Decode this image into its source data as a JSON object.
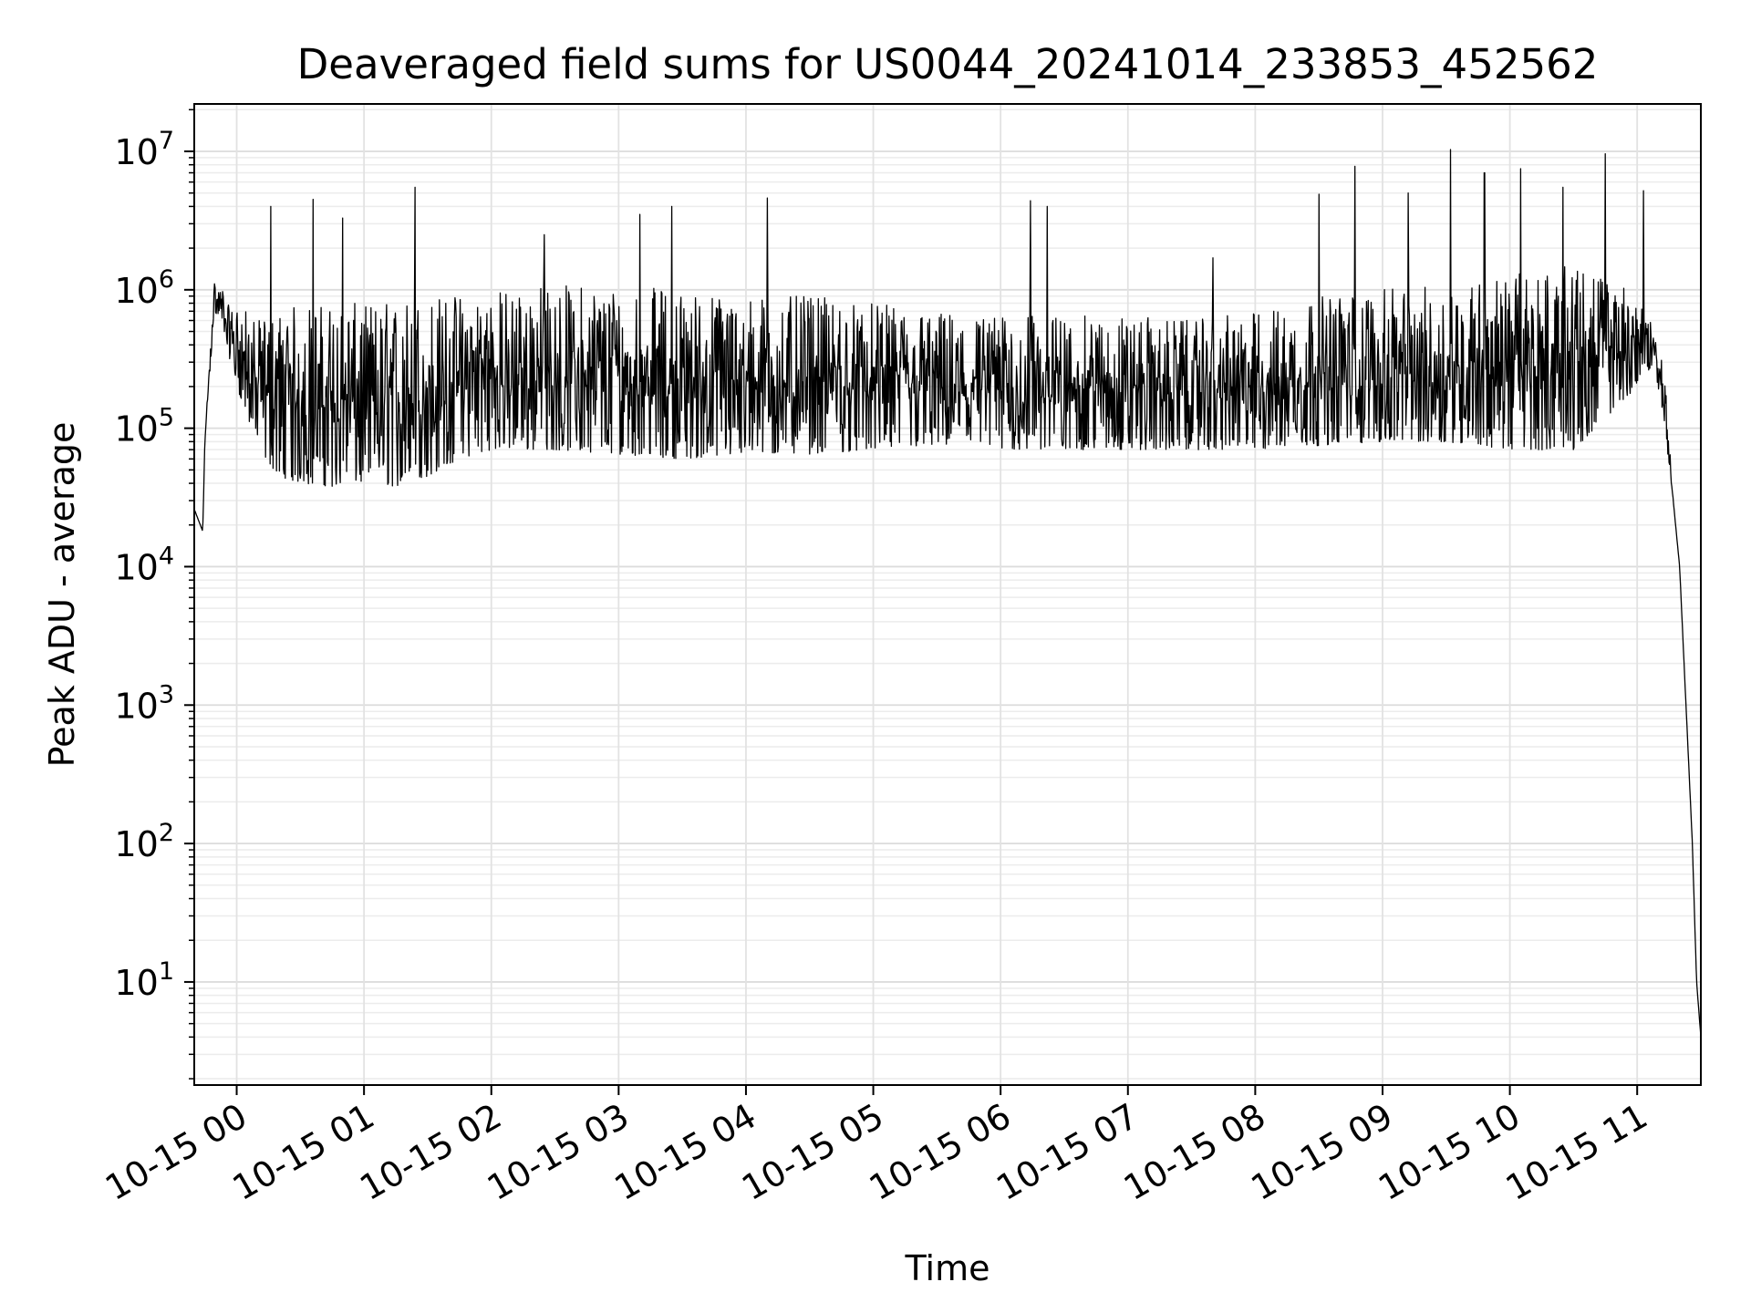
{
  "chart_data": {
    "type": "line",
    "title": "Deaveraged field sums for US0044_20241014_233853_452562",
    "xlabel": "Time",
    "ylabel": "Peak ADU - average",
    "yscale": "log",
    "ylim": [
      1.8,
      22000000
    ],
    "xlim": [
      "2024-10-14 23:40",
      "2024-10-15 11:30"
    ],
    "x_ticks": [
      {
        "x": "2024-10-15 00:00",
        "label": "10-15 00"
      },
      {
        "x": "2024-10-15 01:00",
        "label": "10-15 01"
      },
      {
        "x": "2024-10-15 02:00",
        "label": "10-15 02"
      },
      {
        "x": "2024-10-15 03:00",
        "label": "10-15 03"
      },
      {
        "x": "2024-10-15 04:00",
        "label": "10-15 04"
      },
      {
        "x": "2024-10-15 05:00",
        "label": "10-15 05"
      },
      {
        "x": "2024-10-15 06:00",
        "label": "10-15 06"
      },
      {
        "x": "2024-10-15 07:00",
        "label": "10-15 07"
      },
      {
        "x": "2024-10-15 08:00",
        "label": "10-15 08"
      },
      {
        "x": "2024-10-15 09:00",
        "label": "10-15 09"
      },
      {
        "x": "2024-10-15 10:00",
        "label": "10-15 10"
      },
      {
        "x": "2024-10-15 11:00",
        "label": "10-15 11"
      }
    ],
    "y_ticks": [
      {
        "y": 10,
        "base": "10",
        "exp": "1"
      },
      {
        "y": 100,
        "base": "10",
        "exp": "2"
      },
      {
        "y": 1000,
        "base": "10",
        "exp": "3"
      },
      {
        "y": 10000,
        "base": "10",
        "exp": "4"
      },
      {
        "y": 100000,
        "base": "10",
        "exp": "5"
      },
      {
        "y": 1000000,
        "base": "10",
        "exp": "6"
      },
      {
        "y": 10000000,
        "base": "10",
        "exp": "7"
      }
    ],
    "grid": true,
    "line_color": "#000000",
    "series": [
      {
        "x": [
          "2024-10-14 23:40",
          "2024-10-14 23:44",
          "2024-10-14 23:45",
          "2024-10-14 23:47",
          "2024-10-14 23:49",
          "2024-10-14 23:52",
          "2024-10-14 23:54",
          "2024-10-14 23:57",
          "2024-10-15 00:00",
          "2024-10-15 00:05",
          "2024-10-15 00:10",
          "2024-10-15 00:20",
          "2024-10-15 00:30",
          "2024-10-15 00:45",
          "2024-10-15 01:00",
          "2024-10-15 01:15",
          "2024-10-15 01:30",
          "2024-10-15 01:45",
          "2024-10-15 02:00",
          "2024-10-15 02:30",
          "2024-10-15 03:00",
          "2024-10-15 03:30",
          "2024-10-15 04:00",
          "2024-10-15 04:30",
          "2024-10-15 05:00",
          "2024-10-15 05:30",
          "2024-10-15 06:00",
          "2024-10-15 06:30",
          "2024-10-15 07:00",
          "2024-10-15 07:30",
          "2024-10-15 08:00",
          "2024-10-15 08:30",
          "2024-10-15 09:00",
          "2024-10-15 09:30",
          "2024-10-15 10:00",
          "2024-10-15 10:30",
          "2024-10-15 11:00",
          "2024-10-15 11:08",
          "2024-10-15 11:13",
          "2024-10-15 11:17",
          "2024-10-15 11:20",
          "2024-10-15 11:23",
          "2024-10-15 11:26",
          "2024-10-15 11:28",
          "2024-10-15 11:30"
        ],
        "low": [
          26000,
          18000,
          80000,
          200000,
          600000,
          600000,
          500000,
          300000,
          200000,
          120000,
          70000,
          45000,
          40000,
          38000,
          40000,
          38000,
          45000,
          60000,
          70000,
          70000,
          65000,
          60000,
          65000,
          65000,
          70000,
          75000,
          70000,
          70000,
          70000,
          70000,
          70000,
          75000,
          80000,
          80000,
          70000,
          70000,
          200000,
          300000,
          100000,
          30000,
          10000,
          1000,
          100,
          10,
          4
        ],
        "high": [
          26000,
          18000,
          80000,
          300000,
          1200000,
          1100000,
          1000000,
          700000,
          800000,
          700000,
          600000,
          700000,
          800000,
          800000,
          800000,
          850000,
          900000,
          950000,
          1000000,
          1100000,
          1100000,
          1000000,
          900000,
          900000,
          800000,
          700000,
          650000,
          650000,
          650000,
          600000,
          700000,
          900000,
          1000000,
          1100000,
          1300000,
          1500000,
          1000000,
          500000,
          300000,
          30000,
          10000,
          1000,
          100,
          10,
          4
        ],
        "peaks": [
          {
            "x": "2024-10-15 00:16",
            "y": 4000000
          },
          {
            "x": "2024-10-15 00:36",
            "y": 4500000
          },
          {
            "x": "2024-10-15 00:50",
            "y": 3300000
          },
          {
            "x": "2024-10-15 01:24",
            "y": 5500000
          },
          {
            "x": "2024-10-15 02:25",
            "y": 2500000
          },
          {
            "x": "2024-10-15 03:10",
            "y": 3500000
          },
          {
            "x": "2024-10-15 03:25",
            "y": 4000000
          },
          {
            "x": "2024-10-15 04:10",
            "y": 4600000
          },
          {
            "x": "2024-10-15 06:14",
            "y": 4400000
          },
          {
            "x": "2024-10-15 06:22",
            "y": 4000000
          },
          {
            "x": "2024-10-15 07:40",
            "y": 1700000
          },
          {
            "x": "2024-10-15 08:30",
            "y": 4900000
          },
          {
            "x": "2024-10-15 08:47",
            "y": 7800000
          },
          {
            "x": "2024-10-15 09:12",
            "y": 5000000
          },
          {
            "x": "2024-10-15 09:32",
            "y": 10300000
          },
          {
            "x": "2024-10-15 09:48",
            "y": 7000000
          },
          {
            "x": "2024-10-15 10:05",
            "y": 7500000
          },
          {
            "x": "2024-10-15 10:25",
            "y": 5500000
          },
          {
            "x": "2024-10-15 10:45",
            "y": 9600000
          },
          {
            "x": "2024-10-15 11:03",
            "y": 5200000
          }
        ]
      }
    ]
  }
}
